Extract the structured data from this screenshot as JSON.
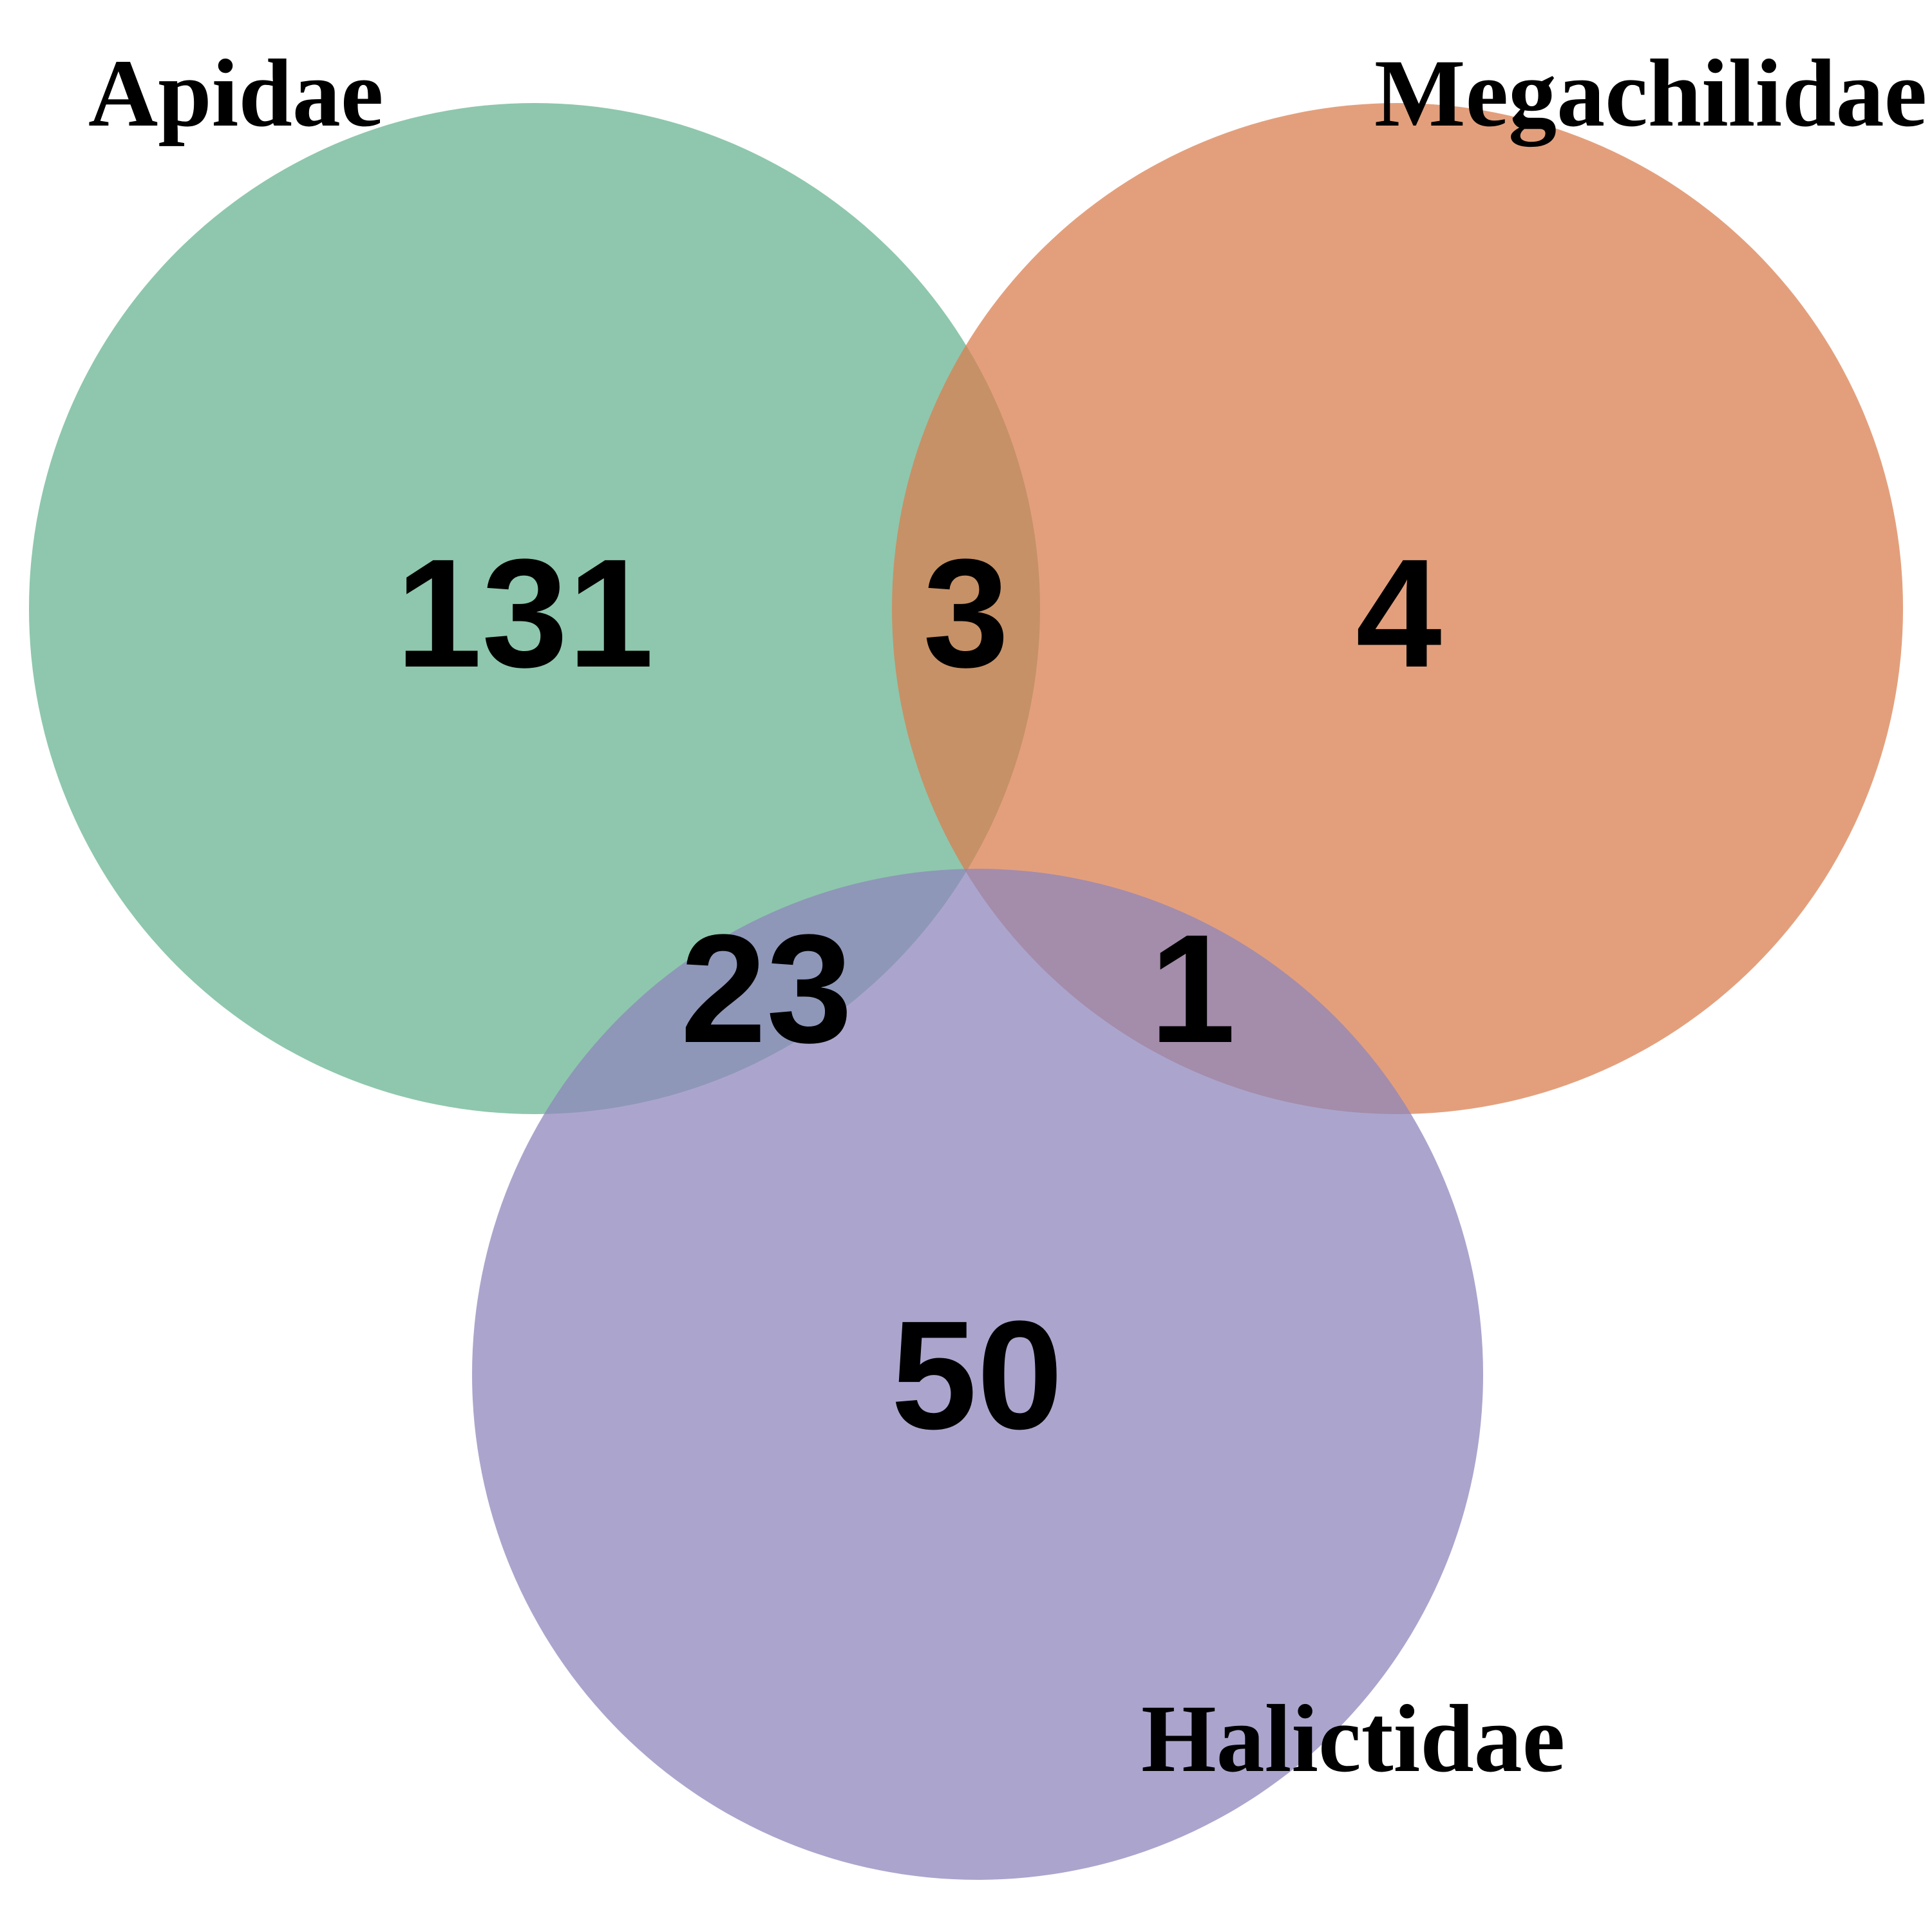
{
  "sets": [
    {
      "key": "A",
      "name": "Apidae",
      "color": "#66b391",
      "only_count": "131"
    },
    {
      "key": "M",
      "name": "Megachilidae",
      "color": "#d97d4e",
      "only_count": "4"
    },
    {
      "key": "H",
      "name": "Halictidae",
      "color": "#8d86bc",
      "only_count": "50"
    }
  ],
  "overlaps": {
    "apidae_megachilidae": "3",
    "apidae_halictidae": "23",
    "megachilidae_halictidae": "1"
  },
  "fill_opacity": 0.74
}
